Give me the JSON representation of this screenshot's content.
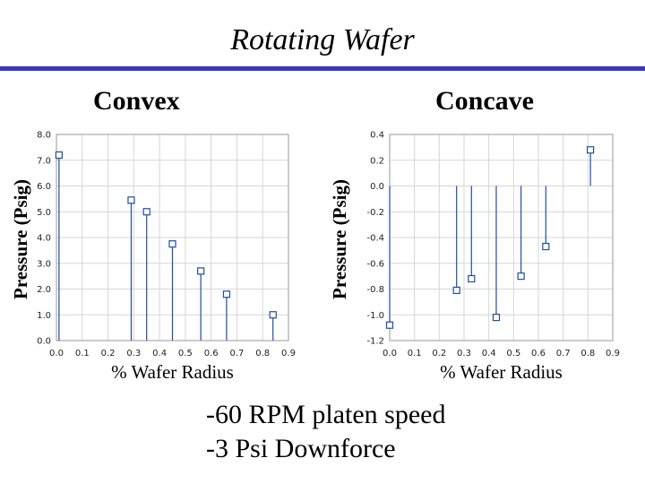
{
  "slide": {
    "title": "Rotating Wafer",
    "notes": [
      "-60 RPM platen speed",
      "-3 Psi Downforce"
    ]
  },
  "chart_data": [
    {
      "type": "scatter",
      "style": "stem",
      "title": "Convex",
      "xlabel": "% Wafer Radius",
      "ylabel": "Pressure (Psig)",
      "xlim": [
        0.0,
        0.9
      ],
      "ylim": [
        0.0,
        8.0
      ],
      "xticks": [
        "0.0",
        "0.1",
        "0.2",
        "0.3",
        "0.4",
        "0.5",
        "0.6",
        "0.7",
        "0.8",
        "0.9"
      ],
      "yticks": [
        "0.0",
        "1.0",
        "2.0",
        "3.0",
        "4.0",
        "5.0",
        "6.0",
        "7.0",
        "8.0"
      ],
      "grid": true,
      "marker_color": "#1f4e9c",
      "points": [
        {
          "x": 0.01,
          "y": 7.2
        },
        {
          "x": 0.29,
          "y": 5.45
        },
        {
          "x": 0.35,
          "y": 5.0
        },
        {
          "x": 0.45,
          "y": 3.75
        },
        {
          "x": 0.56,
          "y": 2.7
        },
        {
          "x": 0.66,
          "y": 1.8
        },
        {
          "x": 0.84,
          "y": 1.0
        }
      ]
    },
    {
      "type": "scatter",
      "style": "stem",
      "title": "Concave",
      "xlabel": "% Wafer Radius",
      "ylabel": "Pressure (Psig)",
      "xlim": [
        0.0,
        0.9
      ],
      "ylim": [
        -1.2,
        0.4
      ],
      "xticks": [
        "0.0",
        "0.1",
        "0.2",
        "0.3",
        "0.4",
        "0.5",
        "0.6",
        "0.7",
        "0.8",
        "0.9"
      ],
      "yticks": [
        "-1.2",
        "-1.0",
        "-0.8",
        "-0.6",
        "-0.4",
        "-0.2",
        "0.0",
        "0.2",
        "0.4"
      ],
      "grid": true,
      "marker_color": "#1f4e9c",
      "points": [
        {
          "x": 0.0,
          "y": -1.08
        },
        {
          "x": 0.27,
          "y": -0.81
        },
        {
          "x": 0.33,
          "y": -0.72
        },
        {
          "x": 0.43,
          "y": -1.02
        },
        {
          "x": 0.53,
          "y": -0.7
        },
        {
          "x": 0.63,
          "y": -0.47
        },
        {
          "x": 0.81,
          "y": 0.28
        }
      ]
    }
  ]
}
